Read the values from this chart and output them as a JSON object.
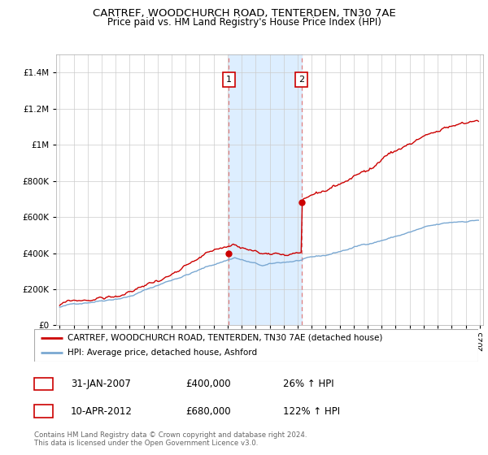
{
  "title": "CARTREF, WOODCHURCH ROAD, TENTERDEN, TN30 7AE",
  "subtitle": "Price paid vs. HM Land Registry's House Price Index (HPI)",
  "sale1_price": 400000,
  "sale2_price": 680000,
  "legend_line1": "CARTREF, WOODCHURCH ROAD, TENTERDEN, TN30 7AE (detached house)",
  "legend_line2": "HPI: Average price, detached house, Ashford",
  "footer1": "Contains HM Land Registry data © Crown copyright and database right 2024.",
  "footer2": "This data is licensed under the Open Government Licence v3.0.",
  "hpi_color": "#7aa8d2",
  "price_color": "#cc0000",
  "highlight_color": "#ddeeff",
  "ylim": [
    0,
    1500000
  ],
  "yticks": [
    0,
    200000,
    400000,
    600000,
    800000,
    1000000,
    1200000,
    1400000
  ],
  "start_year": 1995,
  "end_year": 2025
}
